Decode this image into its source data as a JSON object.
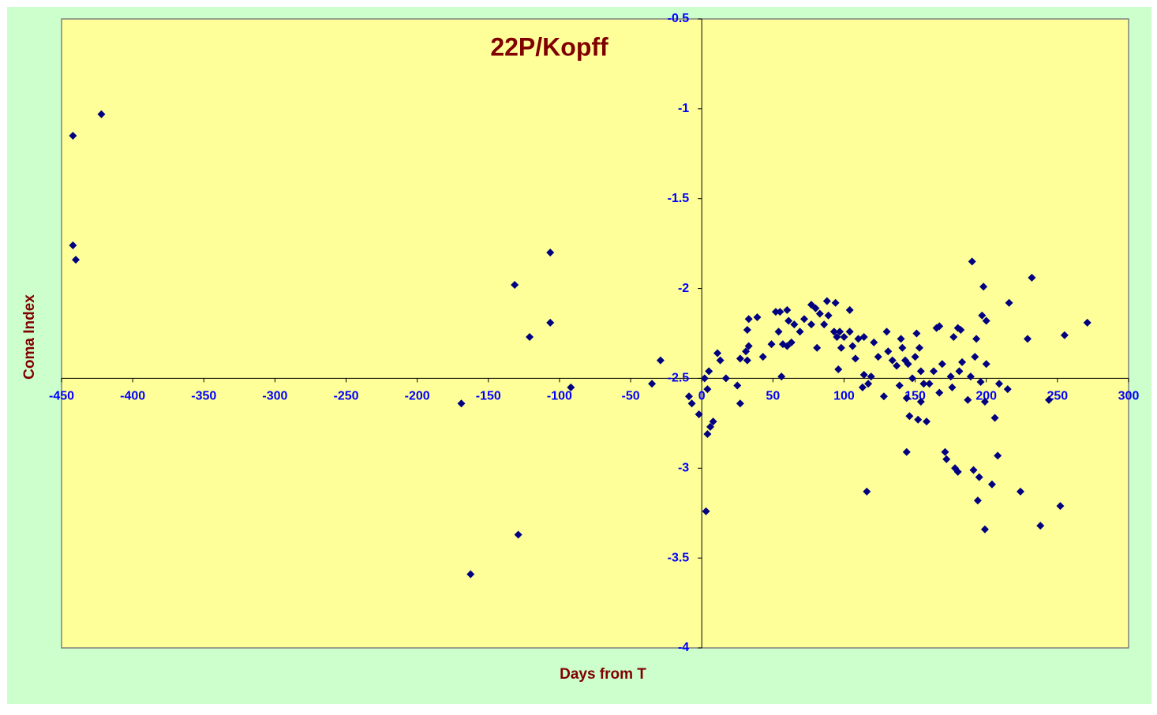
{
  "chart_data": {
    "type": "scatter",
    "title": "22P/Kopff",
    "x_label": "Days from T",
    "y_label": "Coma Index",
    "color": "#000080",
    "x_axis_crosses_y": -2.5,
    "xlim": [
      -450,
      300
    ],
    "xticks": [
      -450,
      -400,
      -350,
      -300,
      -250,
      -200,
      -150,
      -100,
      -50,
      0,
      50,
      100,
      150,
      200,
      250,
      300
    ],
    "ylim": [
      -4,
      -0.5
    ],
    "yticks": [
      -0.5,
      -1,
      -1.5,
      -2,
      -2.5,
      -3,
      -3.5,
      -4
    ],
    "x": [
      -442,
      -422,
      -442,
      -440,
      -131.5,
      -106.5,
      -106.5,
      -121,
      -92,
      -169,
      -129,
      -162.5,
      -29,
      -35,
      -9,
      -7,
      -2,
      3,
      4,
      6,
      8,
      4,
      5,
      2,
      11,
      13,
      17,
      25,
      27,
      27,
      31,
      32,
      33,
      32,
      33,
      39,
      43,
      49,
      52,
      55,
      56,
      54,
      57,
      60,
      61,
      60,
      63,
      65,
      69,
      72,
      77,
      77,
      80,
      81,
      83,
      86,
      88,
      89,
      93,
      94,
      95,
      97,
      98,
      96,
      100,
      104,
      104,
      106,
      108,
      110,
      113,
      114,
      114,
      116,
      117,
      119,
      121,
      124,
      128,
      130,
      131,
      134,
      137,
      139,
      140,
      141,
      143,
      144,
      144,
      145,
      146,
      148,
      150,
      151,
      153,
      152,
      154,
      154,
      156,
      158,
      160,
      163,
      165,
      167,
      167,
      169,
      171,
      172,
      175,
      176,
      177,
      178,
      180,
      180,
      182,
      181,
      183,
      187,
      190,
      191,
      192,
      193,
      194,
      195,
      196,
      197,
      198,
      199,
      199,
      200,
      200,
      204,
      206,
      208,
      209,
      215,
      216,
      224,
      229,
      232,
      238,
      244,
      252,
      255,
      271,
      189
    ],
    "values": [
      -1.15,
      -1.03,
      -1.76,
      -1.84,
      -1.98,
      -1.8,
      -2.19,
      -2.27,
      -2.55,
      -2.64,
      -3.37,
      -3.59,
      -2.4,
      -2.53,
      -2.6,
      -2.64,
      -2.7,
      -3.24,
      -2.81,
      -2.77,
      -2.74,
      -2.56,
      -2.46,
      -2.5,
      -2.36,
      -2.4,
      -2.5,
      -2.54,
      -2.64,
      -2.39,
      -2.35,
      -2.4,
      -2.32,
      -2.23,
      -2.17,
      -2.16,
      -2.38,
      -2.31,
      -2.13,
      -2.13,
      -2.49,
      -2.24,
      -2.31,
      -2.12,
      -2.18,
      -2.32,
      -2.3,
      -2.2,
      -2.24,
      -2.17,
      -2.09,
      -2.2,
      -2.11,
      -2.33,
      -2.14,
      -2.2,
      -2.07,
      -2.15,
      -2.24,
      -2.08,
      -2.27,
      -2.24,
      -2.33,
      -2.45,
      -2.27,
      -2.12,
      -2.24,
      -2.32,
      -2.39,
      -2.28,
      -2.55,
      -2.48,
      -2.27,
      -3.13,
      -2.53,
      -2.49,
      -2.3,
      -2.38,
      -2.6,
      -2.24,
      -2.35,
      -2.4,
      -2.43,
      -2.54,
      -2.28,
      -2.33,
      -2.4,
      -2.61,
      -2.91,
      -2.42,
      -2.71,
      -2.5,
      -2.38,
      -2.25,
      -2.33,
      -2.73,
      -2.46,
      -2.63,
      -2.53,
      -2.74,
      -2.53,
      -2.46,
      -2.22,
      -2.21,
      -2.58,
      -2.42,
      -2.91,
      -2.95,
      -2.49,
      -2.55,
      -2.27,
      -3.0,
      -3.02,
      -2.22,
      -2.23,
      -2.46,
      -2.41,
      -2.62,
      -1.85,
      -3.01,
      -2.38,
      -2.28,
      -3.18,
      -3.05,
      -2.52,
      -2.15,
      -1.99,
      -3.34,
      -2.63,
      -2.18,
      -2.42,
      -3.09,
      -2.72,
      -2.93,
      -2.53,
      -2.56,
      -2.08,
      -3.13,
      -2.28,
      -1.94,
      -3.32,
      -2.62,
      -3.21,
      -2.26,
      -2.19,
      -2.49
    ]
  }
}
